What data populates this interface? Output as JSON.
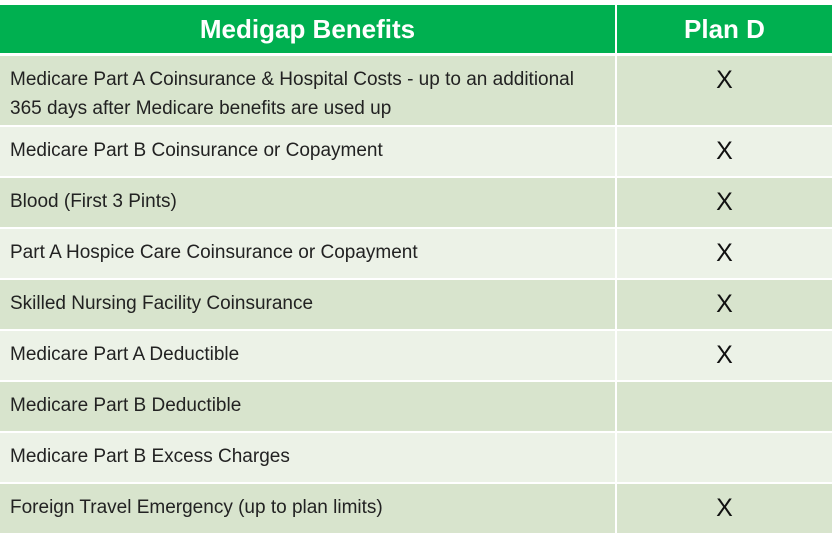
{
  "table": {
    "header": [
      "Medigap Benefits",
      "Plan D"
    ],
    "rows": [
      {
        "benefit": "Medicare Part A Coinsurance & Hospital Costs  - up to an additional 365 days after Medicare benefits are used up",
        "plan_d": "X"
      },
      {
        "benefit": "Medicare Part B Coinsurance or Copayment",
        "plan_d": "X"
      },
      {
        "benefit": "Blood (First 3 Pints)",
        "plan_d": "X"
      },
      {
        "benefit": "Part A Hospice Care Coinsurance or Copayment",
        "plan_d": "X"
      },
      {
        "benefit": "Skilled Nursing Facility Coinsurance",
        "plan_d": "X"
      },
      {
        "benefit": "Medicare Part A Deductible",
        "plan_d": "X"
      },
      {
        "benefit": "Medicare Part B Deductible"
      },
      {
        "benefit": "Medicare Part B Excess Charges"
      },
      {
        "benefit": "Foreign Travel Emergency (up to plan limits)",
        "plan_d": "X"
      }
    ]
  }
}
